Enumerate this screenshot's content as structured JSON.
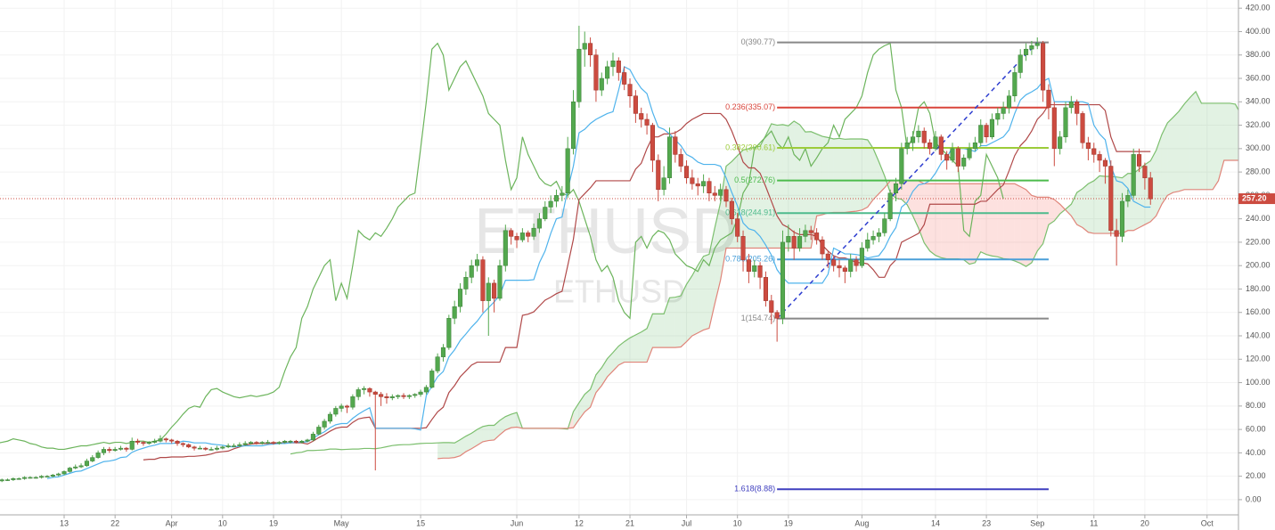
{
  "chart_data": {
    "type": "candlestick",
    "symbol_watermark": "ETHUSD",
    "symbol_watermark_small": "ETHUSD",
    "colors": {
      "up": "#53a84e",
      "down": "#cc4b40"
    },
    "grid": true,
    "ylim": [
      -13,
      427
    ],
    "yticks": [
      {
        "value": 0,
        "label": "0.00"
      },
      {
        "value": 20,
        "label": "20.00"
      },
      {
        "value": 40,
        "label": "40.00"
      },
      {
        "value": 60,
        "label": "60.00"
      },
      {
        "value": 80,
        "label": "80.00"
      },
      {
        "value": 100,
        "label": "100.00"
      },
      {
        "value": 120,
        "label": "120.00"
      },
      {
        "value": 140,
        "label": "140.00"
      },
      {
        "value": 160,
        "label": "160.00"
      },
      {
        "value": 180,
        "label": "180.00"
      },
      {
        "value": 200,
        "label": "200.00"
      },
      {
        "value": 220,
        "label": "220.00"
      },
      {
        "value": 240,
        "label": "240.00"
      },
      {
        "value": 260,
        "label": "260.00"
      },
      {
        "value": 280,
        "label": "280.00"
      },
      {
        "value": 300,
        "label": "300.00"
      },
      {
        "value": 320,
        "label": "320.00"
      },
      {
        "value": 340,
        "label": "340.00"
      },
      {
        "value": 360,
        "label": "360.00"
      },
      {
        "value": 380,
        "label": "380.00"
      },
      {
        "value": 400,
        "label": "400.00"
      },
      {
        "value": 420,
        "label": "420.00"
      }
    ],
    "xlim": [
      -0.34,
      218.55
    ],
    "xticks": [
      {
        "value": 11,
        "label": "13"
      },
      {
        "value": 20,
        "label": "22"
      },
      {
        "value": 30,
        "label": "Apr"
      },
      {
        "value": 39,
        "label": "10"
      },
      {
        "value": 48,
        "label": "19"
      },
      {
        "value": 60,
        "label": "May"
      },
      {
        "value": 74,
        "label": "15"
      },
      {
        "value": 91,
        "label": "Jun"
      },
      {
        "value": 102,
        "label": "12"
      },
      {
        "value": 111,
        "label": "21"
      },
      {
        "value": 121,
        "label": "Jul"
      },
      {
        "value": 130,
        "label": "10"
      },
      {
        "value": 139,
        "label": "19"
      },
      {
        "value": 152,
        "label": "Aug"
      },
      {
        "value": 165,
        "label": "14"
      },
      {
        "value": 174,
        "label": "23"
      },
      {
        "value": 183,
        "label": "Sep"
      },
      {
        "value": 193,
        "label": "11"
      },
      {
        "value": 202,
        "label": "20"
      },
      {
        "value": 213,
        "label": "Oct"
      }
    ],
    "last_price": {
      "value": 257.2,
      "label": "257.20",
      "color": "#cc4b40"
    },
    "fibonacci": [
      {
        "price": 390.77,
        "label": "0(390.77)",
        "color": "#888888"
      },
      {
        "price": 335.07,
        "label": "0.236(335.07)",
        "color": "#d9443a"
      },
      {
        "price": 300.61,
        "label": "0.382(300.61)",
        "color": "#9ccc3a"
      },
      {
        "price": 272.76,
        "label": "0.5(272.76)",
        "color": "#4cbb4c"
      },
      {
        "price": 244.91,
        "label": "0.618(244.91)",
        "color": "#4dba8c"
      },
      {
        "price": 205.26,
        "label": "0.786(205.26)",
        "color": "#4a9fd8"
      },
      {
        "price": 154.74,
        "label": "1(154.74)",
        "color": "#888888"
      },
      {
        "price": 8.88,
        "label": "1.618(8.88)",
        "color": "#3f3fbf"
      }
    ],
    "ohlc": [
      [
        16,
        18,
        15,
        17
      ],
      [
        17,
        18,
        16,
        17
      ],
      [
        17,
        19,
        16,
        18
      ],
      [
        18,
        19,
        17,
        18
      ],
      [
        18,
        20,
        17,
        19
      ],
      [
        19,
        20,
        18,
        19
      ],
      [
        19,
        20,
        18,
        19
      ],
      [
        19,
        21,
        18,
        20
      ],
      [
        20,
        21,
        19,
        20
      ],
      [
        20,
        22,
        19,
        21
      ],
      [
        21,
        23,
        20,
        22
      ],
      [
        22,
        25,
        21,
        24
      ],
      [
        24,
        28,
        23,
        27
      ],
      [
        27,
        30,
        26,
        28
      ],
      [
        28,
        31,
        27,
        29
      ],
      [
        29,
        35,
        28,
        33
      ],
      [
        33,
        38,
        32,
        36
      ],
      [
        36,
        42,
        35,
        40
      ],
      [
        40,
        45,
        38,
        43
      ],
      [
        43,
        45,
        40,
        42
      ],
      [
        42,
        45,
        41,
        43
      ],
      [
        43,
        46,
        42,
        44
      ],
      [
        44,
        45,
        41,
        43
      ],
      [
        43,
        53,
        42,
        50
      ],
      [
        50,
        52,
        47,
        49
      ],
      [
        49,
        50,
        46,
        48
      ],
      [
        48,
        50,
        47,
        49
      ],
      [
        49,
        52,
        48,
        50
      ],
      [
        50,
        55,
        49,
        52
      ],
      [
        52,
        53,
        49,
        51
      ],
      [
        51,
        52,
        48,
        50
      ],
      [
        50,
        51,
        46,
        48
      ],
      [
        48,
        49,
        45,
        47
      ],
      [
        47,
        48,
        44,
        45
      ],
      [
        45,
        46,
        42,
        44
      ],
      [
        44,
        46,
        43,
        44
      ],
      [
        44,
        45,
        42,
        43
      ],
      [
        43,
        45,
        42,
        43
      ],
      [
        43,
        46,
        42,
        44
      ],
      [
        44,
        46,
        43,
        45
      ],
      [
        45,
        48,
        44,
        46
      ],
      [
        46,
        48,
        45,
        46
      ],
      [
        46,
        49,
        45,
        47
      ],
      [
        47,
        50,
        46,
        48
      ],
      [
        48,
        50,
        47,
        49
      ],
      [
        49,
        50,
        47,
        48
      ],
      [
        48,
        50,
        47,
        49
      ],
      [
        49,
        51,
        48,
        49
      ],
      [
        49,
        50,
        47,
        48
      ],
      [
        48,
        50,
        47,
        49
      ],
      [
        49,
        51,
        48,
        50
      ],
      [
        50,
        51,
        48,
        50
      ],
      [
        50,
        51,
        48,
        49
      ],
      [
        49,
        51,
        48,
        50
      ],
      [
        50,
        52,
        49,
        51
      ],
      [
        51,
        58,
        50,
        56
      ],
      [
        56,
        64,
        55,
        62
      ],
      [
        62,
        69,
        60,
        67
      ],
      [
        67,
        75,
        65,
        73
      ],
      [
        73,
        80,
        71,
        78
      ],
      [
        78,
        82,
        75,
        80
      ],
      [
        80,
        81,
        74,
        79
      ],
      [
        79,
        90,
        77,
        88
      ],
      [
        88,
        96,
        85,
        94
      ],
      [
        94,
        97,
        90,
        95
      ],
      [
        95,
        96,
        88,
        92
      ],
      [
        92,
        93,
        25,
        90
      ],
      [
        90,
        92,
        80,
        88
      ],
      [
        88,
        91,
        82,
        87
      ],
      [
        87,
        90,
        85,
        88
      ],
      [
        88,
        90,
        86,
        89
      ],
      [
        89,
        91,
        86,
        88
      ],
      [
        88,
        90,
        86,
        89
      ],
      [
        89,
        91,
        87,
        90
      ],
      [
        90,
        94,
        88,
        92
      ],
      [
        92,
        98,
        90,
        96
      ],
      [
        96,
        112,
        95,
        110
      ],
      [
        110,
        125,
        108,
        122
      ],
      [
        122,
        133,
        118,
        130
      ],
      [
        130,
        158,
        128,
        155
      ],
      [
        155,
        170,
        150,
        165
      ],
      [
        165,
        185,
        160,
        180
      ],
      [
        180,
        195,
        175,
        190
      ],
      [
        190,
        205,
        185,
        200
      ],
      [
        200,
        210,
        195,
        205
      ],
      [
        205,
        208,
        160,
        170
      ],
      [
        170,
        190,
        140,
        185
      ],
      [
        185,
        188,
        160,
        172
      ],
      [
        172,
        205,
        170,
        200
      ],
      [
        200,
        235,
        195,
        230
      ],
      [
        230,
        232,
        218,
        225
      ],
      [
        225,
        228,
        215,
        222
      ],
      [
        222,
        232,
        220,
        228
      ],
      [
        228,
        230,
        220,
        225
      ],
      [
        225,
        236,
        222,
        232
      ],
      [
        232,
        245,
        228,
        240
      ],
      [
        240,
        255,
        238,
        250
      ],
      [
        250,
        260,
        245,
        255
      ],
      [
        255,
        265,
        250,
        260
      ],
      [
        260,
        268,
        255,
        262
      ],
      [
        262,
        310,
        258,
        300
      ],
      [
        300,
        350,
        295,
        340
      ],
      [
        340,
        405,
        335,
        385
      ],
      [
        385,
        400,
        370,
        390
      ],
      [
        390,
        395,
        370,
        380
      ],
      [
        380,
        385,
        340,
        350
      ],
      [
        350,
        365,
        345,
        360
      ],
      [
        360,
        375,
        355,
        370
      ],
      [
        370,
        382,
        362,
        375
      ],
      [
        375,
        378,
        358,
        365
      ],
      [
        365,
        370,
        350,
        355
      ],
      [
        355,
        360,
        335,
        345
      ],
      [
        345,
        350,
        322,
        330
      ],
      [
        330,
        335,
        318,
        325
      ],
      [
        325,
        330,
        312,
        320
      ],
      [
        320,
        322,
        280,
        290
      ],
      [
        290,
        295,
        255,
        265
      ],
      [
        265,
        285,
        260,
        275
      ],
      [
        275,
        318,
        270,
        310
      ],
      [
        310,
        315,
        288,
        295
      ],
      [
        295,
        300,
        280,
        285
      ],
      [
        285,
        290,
        270,
        275
      ],
      [
        275,
        282,
        265,
        270
      ],
      [
        270,
        275,
        260,
        268
      ],
      [
        268,
        278,
        262,
        272
      ],
      [
        272,
        275,
        255,
        262
      ],
      [
        262,
        268,
        255,
        260
      ],
      [
        260,
        270,
        255,
        265
      ],
      [
        265,
        268,
        250,
        255
      ],
      [
        255,
        258,
        235,
        240
      ],
      [
        240,
        245,
        220,
        225
      ],
      [
        225,
        230,
        195,
        205
      ],
      [
        205,
        210,
        185,
        195
      ],
      [
        195,
        205,
        190,
        200
      ],
      [
        200,
        203,
        180,
        190
      ],
      [
        190,
        195,
        165,
        170
      ],
      [
        170,
        175,
        150,
        160
      ],
      [
        160,
        162,
        135,
        155
      ],
      [
        155,
        230,
        150,
        220
      ],
      [
        220,
        235,
        212,
        225
      ],
      [
        225,
        230,
        205,
        215
      ],
      [
        215,
        232,
        212,
        225
      ],
      [
        225,
        235,
        220,
        230
      ],
      [
        230,
        234,
        222,
        228
      ],
      [
        228,
        232,
        218,
        222
      ],
      [
        222,
        225,
        205,
        210
      ],
      [
        210,
        212,
        198,
        205
      ],
      [
        205,
        208,
        195,
        200
      ],
      [
        200,
        205,
        190,
        198
      ],
      [
        198,
        200,
        185,
        195
      ],
      [
        195,
        210,
        190,
        205
      ],
      [
        205,
        208,
        195,
        200
      ],
      [
        200,
        220,
        198,
        215
      ],
      [
        215,
        228,
        212,
        222
      ],
      [
        222,
        230,
        218,
        225
      ],
      [
        225,
        232,
        220,
        228
      ],
      [
        228,
        245,
        225,
        240
      ],
      [
        240,
        265,
        238,
        262
      ],
      [
        262,
        275,
        255,
        270
      ],
      [
        270,
        305,
        265,
        300
      ],
      [
        300,
        310,
        295,
        305
      ],
      [
        305,
        315,
        298,
        310
      ],
      [
        310,
        320,
        305,
        315
      ],
      [
        315,
        318,
        300,
        305
      ],
      [
        305,
        308,
        295,
        300
      ],
      [
        300,
        315,
        298,
        310
      ],
      [
        310,
        312,
        290,
        295
      ],
      [
        295,
        298,
        282,
        290
      ],
      [
        290,
        305,
        288,
        300
      ],
      [
        300,
        302,
        280,
        285
      ],
      [
        285,
        295,
        282,
        292
      ],
      [
        292,
        305,
        290,
        300
      ],
      [
        300,
        310,
        298,
        305
      ],
      [
        305,
        325,
        302,
        320
      ],
      [
        320,
        322,
        305,
        310
      ],
      [
        310,
        330,
        308,
        325
      ],
      [
        325,
        335,
        320,
        330
      ],
      [
        330,
        340,
        325,
        335
      ],
      [
        335,
        350,
        330,
        345
      ],
      [
        345,
        370,
        340,
        365
      ],
      [
        365,
        385,
        360,
        380
      ],
      [
        380,
        390,
        375,
        385
      ],
      [
        385,
        392,
        380,
        388
      ],
      [
        388,
        395,
        385,
        390
      ],
      [
        390,
        392,
        340,
        350
      ],
      [
        350,
        355,
        325,
        335
      ],
      [
        335,
        340,
        285,
        300
      ],
      [
        300,
        315,
        295,
        310
      ],
      [
        310,
        340,
        305,
        335
      ],
      [
        335,
        345,
        330,
        340
      ],
      [
        340,
        342,
        320,
        330
      ],
      [
        330,
        332,
        300,
        305
      ],
      [
        305,
        310,
        290,
        300
      ],
      [
        300,
        305,
        288,
        295
      ],
      [
        295,
        298,
        280,
        290
      ],
      [
        290,
        292,
        270,
        285
      ],
      [
        285,
        290,
        225,
        230
      ],
      [
        230,
        240,
        200,
        225
      ],
      [
        225,
        262,
        220,
        255
      ],
      [
        255,
        265,
        250,
        260
      ],
      [
        260,
        300,
        258,
        295
      ],
      [
        295,
        300,
        280,
        285
      ],
      [
        285,
        288,
        265,
        275
      ],
      [
        275,
        280,
        252,
        257
      ]
    ]
  }
}
